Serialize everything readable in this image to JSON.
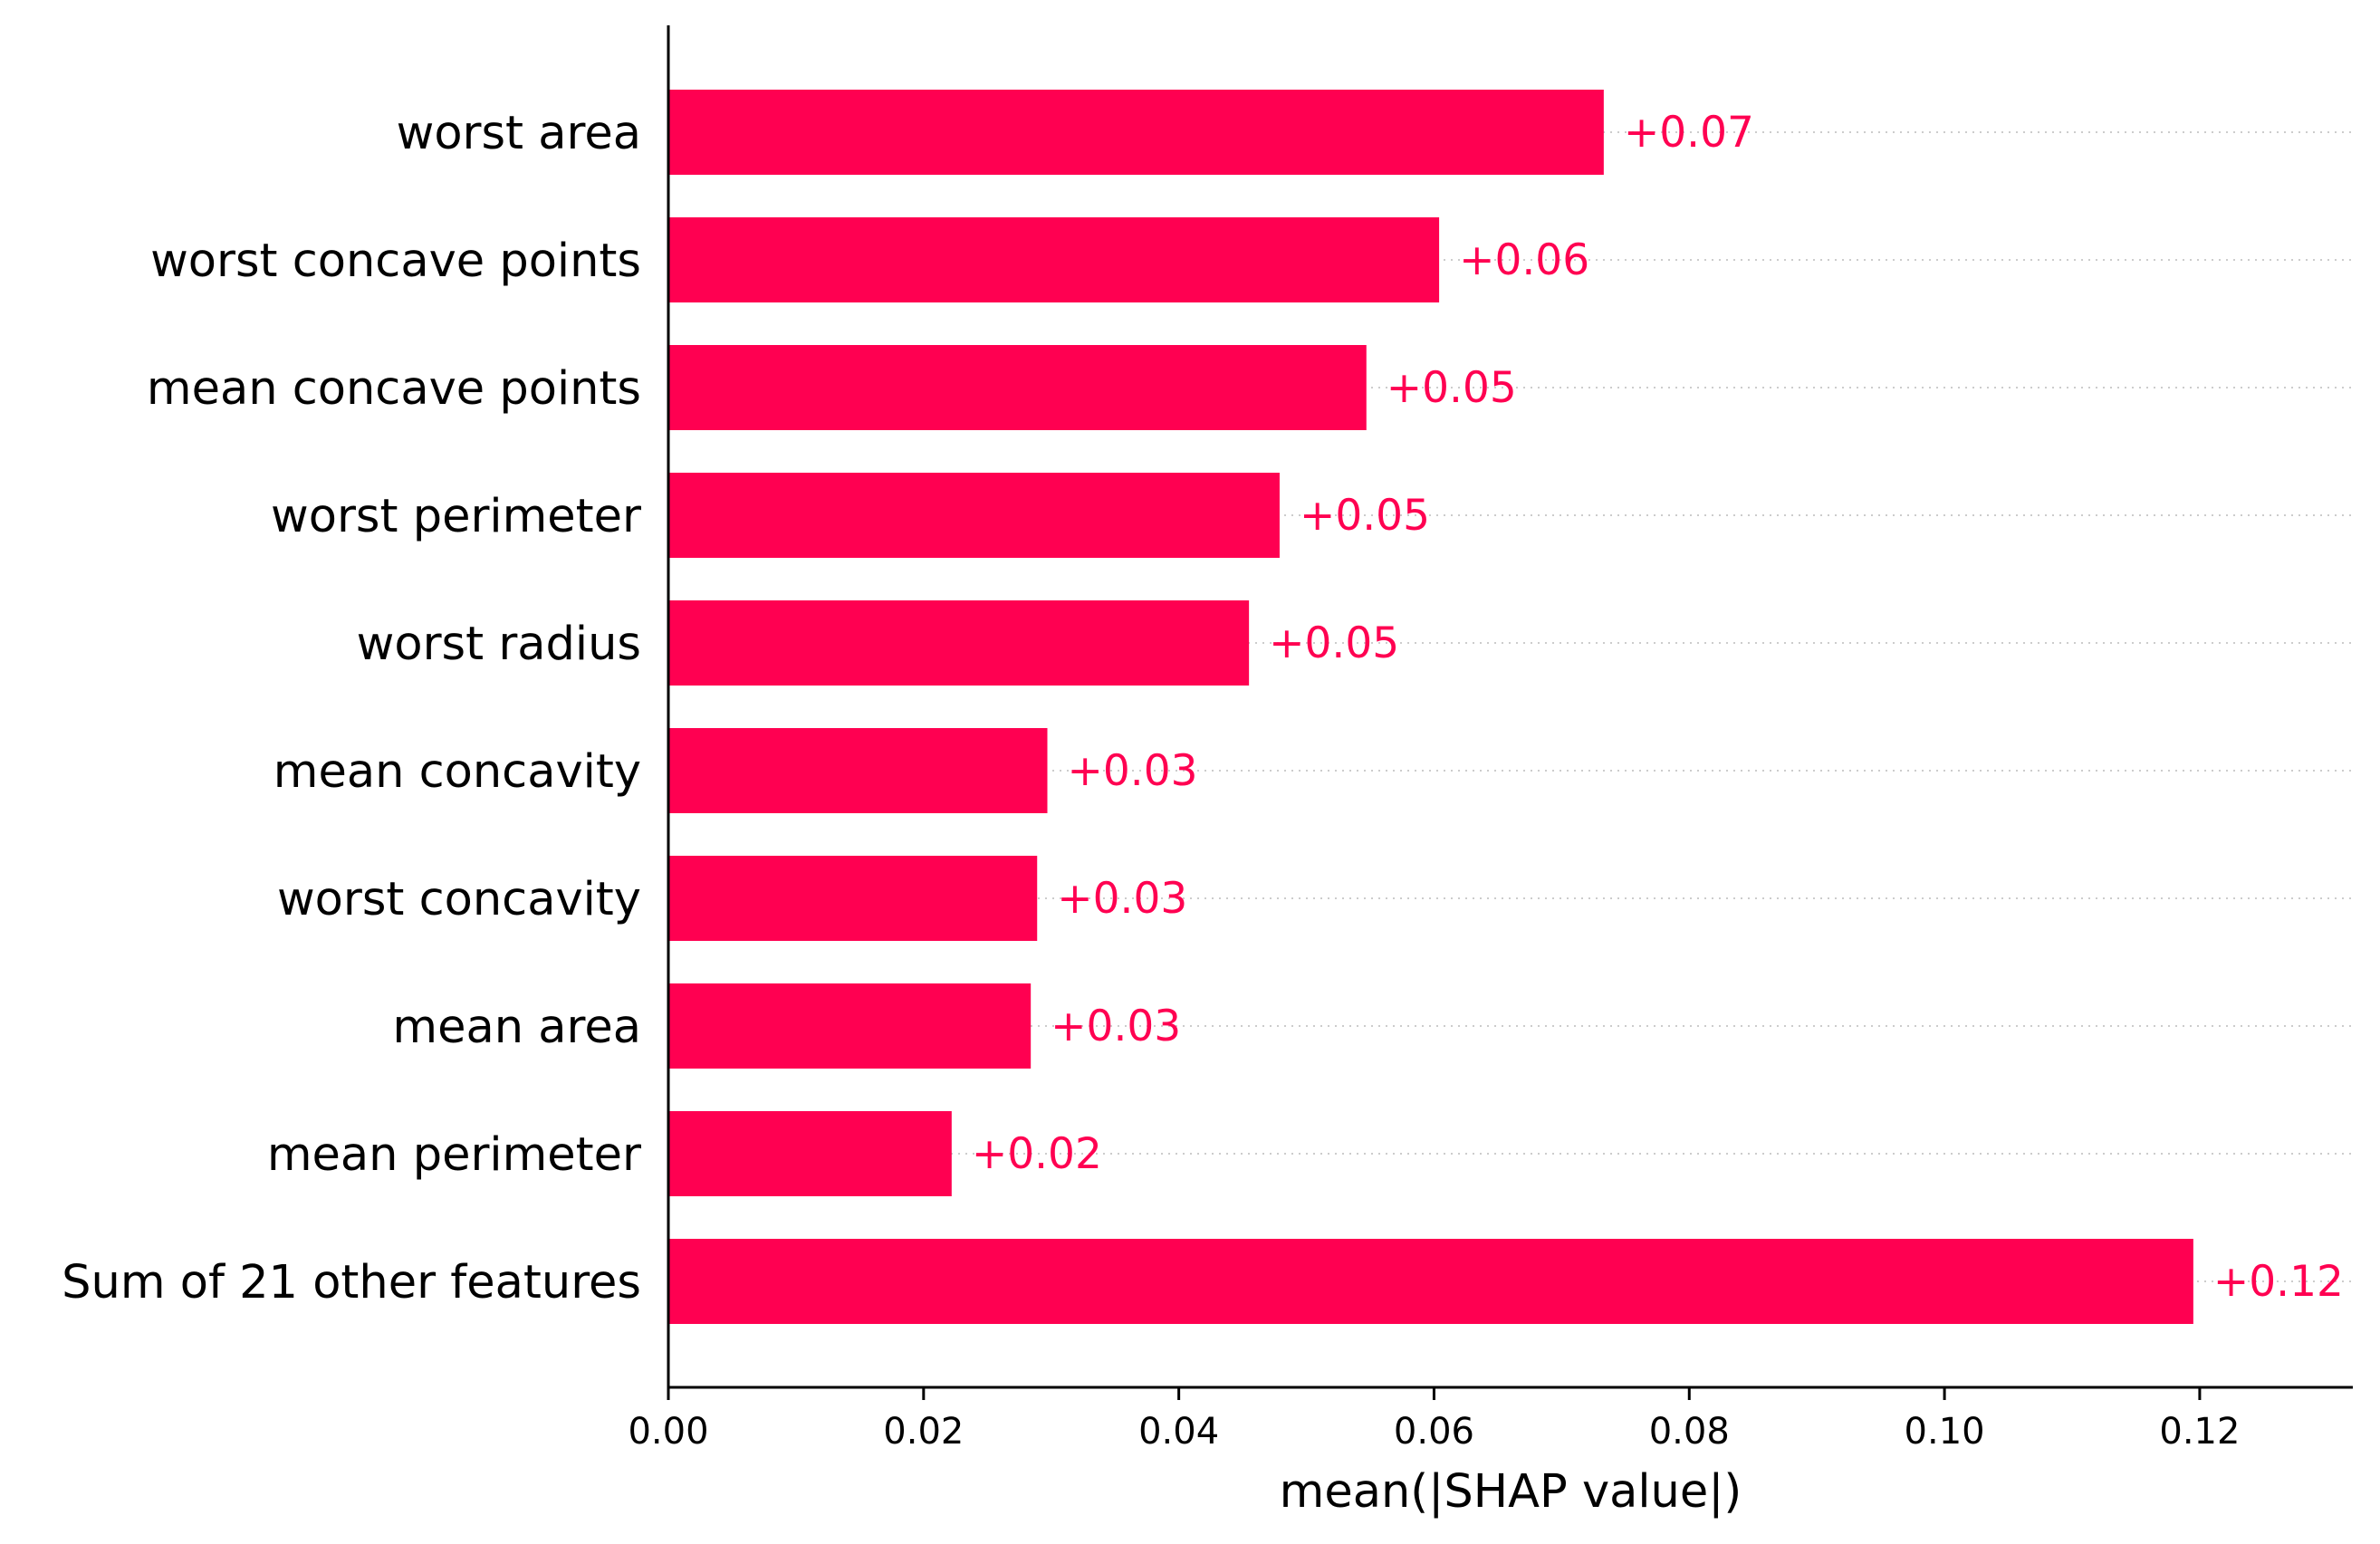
{
  "chart_data": {
    "type": "bar",
    "orientation": "horizontal",
    "categories": [
      "worst area",
      "worst concave points",
      "mean concave points",
      "worst perimeter",
      "worst radius",
      "mean concavity",
      "worst concavity",
      "mean area",
      "mean perimeter",
      "Sum of 21 other features"
    ],
    "values": [
      0.0733,
      0.0604,
      0.0547,
      0.0479,
      0.0455,
      0.0297,
      0.0289,
      0.0284,
      0.0222,
      0.1195
    ],
    "value_labels": [
      "+0.07",
      "+0.06",
      "+0.05",
      "+0.05",
      "+0.05",
      "+0.03",
      "+0.03",
      "+0.03",
      "+0.02",
      "+0.12"
    ],
    "xlabel": "mean(|SHAP value|)",
    "ylabel": "",
    "xlim": [
      0,
      0.132
    ],
    "xticks": [
      "0.00",
      "0.02",
      "0.04",
      "0.06",
      "0.08",
      "0.10",
      "0.12"
    ],
    "xtick_values": [
      0,
      0.02,
      0.04,
      0.06,
      0.08,
      0.1,
      0.12
    ],
    "grid": "dotted row guides",
    "bar_color": "#ff0051",
    "label_color": "#ff0051",
    "guide_color": "#cccccc"
  }
}
